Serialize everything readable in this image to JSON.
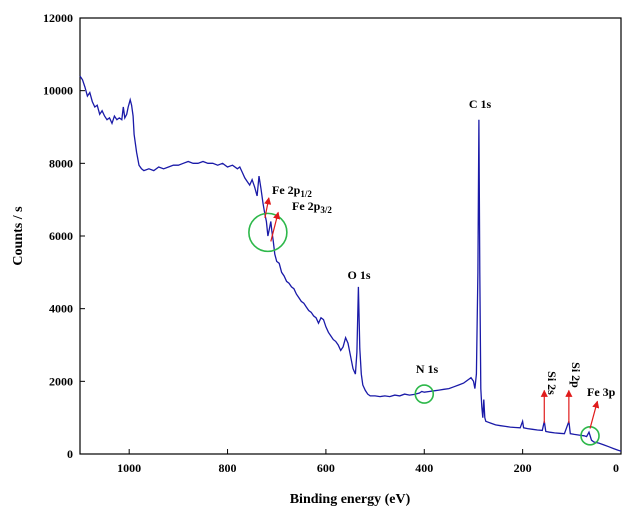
{
  "chart_data": {
    "type": "line",
    "xlabel": "Binding energy (eV)",
    "ylabel": "Counts / s",
    "xlim": [
      1100,
      0
    ],
    "ylim": [
      0,
      12000
    ],
    "x_reversed": true,
    "x_ticks": [
      1000,
      800,
      600,
      400,
      200,
      0
    ],
    "y_ticks": [
      0,
      2000,
      4000,
      6000,
      8000,
      10000,
      12000
    ],
    "series_color": "#1a1aa8",
    "annotation_color": "#e01b1b",
    "circle_color": "#2db84a",
    "series": [
      {
        "points": [
          [
            1100,
            10400
          ],
          [
            1095,
            10300
          ],
          [
            1090,
            10100
          ],
          [
            1085,
            9850
          ],
          [
            1080,
            9950
          ],
          [
            1075,
            9700
          ],
          [
            1070,
            9550
          ],
          [
            1065,
            9600
          ],
          [
            1060,
            9350
          ],
          [
            1055,
            9450
          ],
          [
            1050,
            9300
          ],
          [
            1045,
            9200
          ],
          [
            1040,
            9250
          ],
          [
            1035,
            9100
          ],
          [
            1030,
            9300
          ],
          [
            1025,
            9200
          ],
          [
            1020,
            9250
          ],
          [
            1015,
            9200
          ],
          [
            1012,
            9550
          ],
          [
            1009,
            9250
          ],
          [
            1005,
            9350
          ],
          [
            1002,
            9550
          ],
          [
            998,
            9750
          ],
          [
            995,
            9600
          ],
          [
            992,
            9300
          ],
          [
            990,
            8800
          ],
          [
            985,
            8300
          ],
          [
            980,
            7950
          ],
          [
            975,
            7850
          ],
          [
            970,
            7800
          ],
          [
            960,
            7850
          ],
          [
            950,
            7800
          ],
          [
            940,
            7900
          ],
          [
            930,
            7850
          ],
          [
            920,
            7900
          ],
          [
            910,
            7950
          ],
          [
            900,
            7950
          ],
          [
            890,
            8000
          ],
          [
            880,
            8050
          ],
          [
            870,
            8000
          ],
          [
            860,
            8000
          ],
          [
            850,
            8050
          ],
          [
            840,
            8000
          ],
          [
            830,
            8000
          ],
          [
            820,
            7950
          ],
          [
            810,
            8000
          ],
          [
            800,
            7900
          ],
          [
            790,
            7950
          ],
          [
            780,
            7850
          ],
          [
            775,
            7900
          ],
          [
            770,
            7750
          ],
          [
            765,
            7600
          ],
          [
            760,
            7500
          ],
          [
            755,
            7400
          ],
          [
            750,
            7550
          ],
          [
            745,
            7350
          ],
          [
            740,
            7100
          ],
          [
            736,
            7650
          ],
          [
            732,
            7300
          ],
          [
            728,
            6900
          ],
          [
            724,
            6600
          ],
          [
            721,
            6400
          ],
          [
            718,
            6000
          ],
          [
            715,
            6200
          ],
          [
            712,
            6400
          ],
          [
            710,
            6150
          ],
          [
            707,
            5850
          ],
          [
            704,
            5500
          ],
          [
            700,
            5300
          ],
          [
            695,
            5250
          ],
          [
            690,
            5000
          ],
          [
            685,
            4900
          ],
          [
            680,
            4750
          ],
          [
            675,
            4700
          ],
          [
            670,
            4600
          ],
          [
            665,
            4550
          ],
          [
            660,
            4400
          ],
          [
            655,
            4300
          ],
          [
            650,
            4200
          ],
          [
            645,
            4150
          ],
          [
            640,
            4050
          ],
          [
            635,
            3950
          ],
          [
            630,
            3900
          ],
          [
            625,
            3800
          ],
          [
            620,
            3750
          ],
          [
            615,
            3600
          ],
          [
            610,
            3750
          ],
          [
            605,
            3700
          ],
          [
            600,
            3500
          ],
          [
            595,
            3350
          ],
          [
            590,
            3250
          ],
          [
            585,
            3150
          ],
          [
            580,
            3100
          ],
          [
            575,
            3000
          ],
          [
            570,
            2850
          ],
          [
            565,
            2950
          ],
          [
            560,
            3200
          ],
          [
            555,
            3050
          ],
          [
            550,
            2700
          ],
          [
            545,
            2350
          ],
          [
            540,
            2200
          ],
          [
            537,
            2800
          ],
          [
            534,
            4600
          ],
          [
            531,
            2900
          ],
          [
            528,
            2200
          ],
          [
            525,
            1900
          ],
          [
            520,
            1750
          ],
          [
            515,
            1650
          ],
          [
            510,
            1600
          ],
          [
            500,
            1600
          ],
          [
            490,
            1580
          ],
          [
            480,
            1600
          ],
          [
            470,
            1580
          ],
          [
            460,
            1620
          ],
          [
            450,
            1600
          ],
          [
            440,
            1650
          ],
          [
            430,
            1620
          ],
          [
            420,
            1640
          ],
          [
            410,
            1680
          ],
          [
            405,
            1720
          ],
          [
            400,
            1700
          ],
          [
            390,
            1720
          ],
          [
            380,
            1740
          ],
          [
            370,
            1760
          ],
          [
            360,
            1780
          ],
          [
            350,
            1800
          ],
          [
            340,
            1850
          ],
          [
            330,
            1900
          ],
          [
            320,
            1950
          ],
          [
            310,
            2050
          ],
          [
            305,
            2100
          ],
          [
            300,
            2000
          ],
          [
            297,
            1800
          ],
          [
            294,
            2200
          ],
          [
            291,
            5000
          ],
          [
            289,
            9200
          ],
          [
            287,
            5000
          ],
          [
            285,
            1800
          ],
          [
            283,
            1300
          ],
          [
            281,
            1000
          ],
          [
            279,
            1500
          ],
          [
            277,
            1000
          ],
          [
            275,
            900
          ],
          [
            265,
            850
          ],
          [
            255,
            800
          ],
          [
            245,
            780
          ],
          [
            235,
            760
          ],
          [
            225,
            740
          ],
          [
            215,
            730
          ],
          [
            205,
            720
          ],
          [
            200,
            900
          ],
          [
            198,
            720
          ],
          [
            190,
            700
          ],
          [
            180,
            680
          ],
          [
            170,
            660
          ],
          [
            160,
            650
          ],
          [
            156,
            900
          ],
          [
            153,
            620
          ],
          [
            145,
            600
          ],
          [
            135,
            580
          ],
          [
            125,
            570
          ],
          [
            115,
            560
          ],
          [
            106,
            900
          ],
          [
            103,
            560
          ],
          [
            95,
            540
          ],
          [
            85,
            520
          ],
          [
            75,
            500
          ],
          [
            70,
            480
          ],
          [
            65,
            600
          ],
          [
            60,
            380
          ],
          [
            55,
            330
          ],
          [
            45,
            300
          ],
          [
            35,
            250
          ],
          [
            25,
            200
          ],
          [
            15,
            150
          ],
          [
            5,
            100
          ],
          [
            0,
            80
          ]
        ]
      }
    ],
    "annotations": [
      {
        "label": "C 1s",
        "x": 289,
        "y": 9200
      },
      {
        "label": "O 1s",
        "x": 534,
        "y": 4600
      },
      {
        "label": "N 1s",
        "x": 400,
        "y": 1700
      },
      {
        "label": "Fe 2p",
        "subscript": "1/2",
        "x": 724,
        "y": 6600
      },
      {
        "label": "Fe 2p",
        "subscript": "3/2",
        "x": 711,
        "y": 5900
      },
      {
        "label": "Si 2s",
        "x": 156,
        "y": 900
      },
      {
        "label": "Si 2p",
        "x": 106,
        "y": 900
      },
      {
        "label": "Fe 3p",
        "x": 65,
        "y": 600
      }
    ]
  }
}
